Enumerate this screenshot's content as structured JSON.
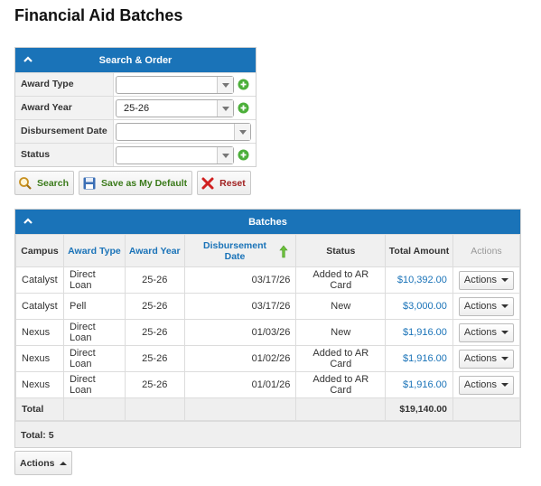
{
  "page": {
    "title": "Financial Aid Batches"
  },
  "search": {
    "header": "Search & Order",
    "fields": [
      {
        "label": "Award Type",
        "value": ""
      },
      {
        "label": "Award Year",
        "value": "25-26"
      },
      {
        "label": "Disbursement Date",
        "value": ""
      },
      {
        "label": "Status",
        "value": ""
      }
    ],
    "buttons": {
      "search": "Search",
      "save_default": "Save as My Default",
      "reset": "Reset"
    }
  },
  "batches": {
    "header": "Batches",
    "columns": [
      "Campus",
      "Award Type",
      "Award Year",
      "Disbursement Date",
      "Status",
      "Total Amount",
      "Actions"
    ],
    "rows": [
      {
        "campus": "Catalyst",
        "award_type": "Direct Loan",
        "award_year": "25-26",
        "date": "03/17/26",
        "status": "Added to AR Card",
        "amount": "$10,392.00",
        "action": "Actions"
      },
      {
        "campus": "Catalyst",
        "award_type": "Pell",
        "award_year": "25-26",
        "date": "03/17/26",
        "status": "New",
        "amount": "$3,000.00",
        "action": "Actions"
      },
      {
        "campus": "Nexus",
        "award_type": "Direct Loan",
        "award_year": "25-26",
        "date": "01/03/26",
        "status": "New",
        "amount": "$1,916.00",
        "action": "Actions"
      },
      {
        "campus": "Nexus",
        "award_type": "Direct Loan",
        "award_year": "25-26",
        "date": "01/02/26",
        "status": "Added to AR Card",
        "amount": "$1,916.00",
        "action": "Actions"
      },
      {
        "campus": "Nexus",
        "award_type": "Direct Loan",
        "award_year": "25-26",
        "date": "01/01/26",
        "status": "Added to AR Card",
        "amount": "$1,916.00",
        "action": "Actions"
      }
    ],
    "total_label": "Total",
    "total_amount": "$19,140.00",
    "count_label": "Total: 5"
  },
  "footer": {
    "actions_label": "Actions"
  },
  "colors": {
    "header_blue": "#1a73b8",
    "link_blue": "#1a73b8",
    "add_green": "#4caf3a"
  }
}
